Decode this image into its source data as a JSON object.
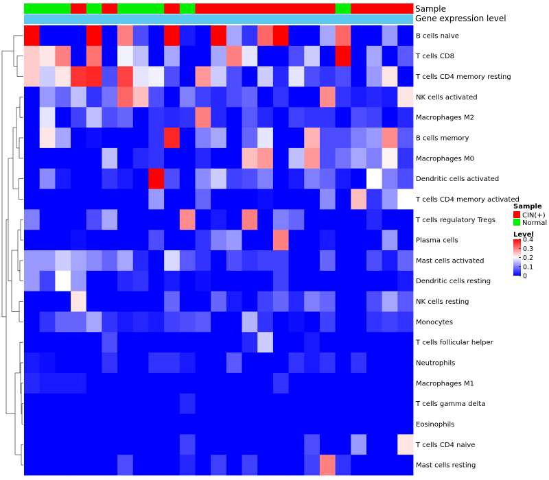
{
  "chart_data": {
    "type": "heatmap",
    "title": "",
    "annotations": {
      "sample_label": "Sample",
      "expression_label": "Gene expression level",
      "sample_groups": [
        "Normal",
        "Normal",
        "Normal",
        "CIN(+)",
        "Normal",
        "CIN(+)",
        "Normal",
        "Normal",
        "Normal",
        "CIN(+)",
        "Normal",
        "CIN(+)",
        "CIN(+)",
        "CIN(+)",
        "CIN(+)",
        "CIN(+)",
        "CIN(+)",
        "CIN(+)",
        "CIN(+)",
        "CIN(+)",
        "Normal",
        "CIN(+)",
        "CIN(+)",
        "CIN(+)",
        "CIN(+)"
      ],
      "sample_colors": {
        "CIN(+)": "#ff0000",
        "Normal": "#00ee00"
      },
      "expression_color": "#5bc8f0"
    },
    "rows": [
      "B cells naive",
      "T cells CD8",
      "T cells CD4 memory resting",
      "NK cells activated",
      "Macrophages M2",
      "B cells memory",
      "Macrophages M0",
      "Dendritic cells activated",
      "T cells CD4 memory activated",
      "T cells regulatory  Tregs",
      "Plasma cells",
      "Mast cells activated",
      "Dendritic cells resting",
      "NK cells resting",
      "Monocytes",
      "T cells follicular helper",
      "Neutrophils",
      "Macrophages M1",
      "T cells gamma delta",
      "Eosinophils",
      "T cells CD4 naive",
      "Mast cells resting"
    ],
    "values": [
      [
        0.4,
        0.0,
        0.0,
        0.0,
        0.4,
        0.0,
        0.3,
        0.06,
        0.0,
        0.4,
        0.02,
        0.0,
        0.4,
        0.13,
        0.04,
        0.32,
        0.4,
        0.0,
        0.0,
        0.13,
        0.32,
        0.0,
        0.0,
        0.12,
        0.0
      ],
      [
        0.24,
        0.22,
        0.3,
        0.0,
        0.31,
        0.0,
        0.19,
        0.15,
        0.0,
        0.13,
        0.0,
        0.0,
        0.13,
        0.3,
        0.18,
        0.0,
        0.0,
        0.06,
        0.16,
        0.0,
        0.4,
        0.0,
        0.13,
        0.0,
        0.07
      ],
      [
        0.24,
        0.16,
        0.22,
        0.36,
        0.37,
        0.06,
        0.35,
        0.18,
        0.19,
        0.06,
        0.0,
        0.28,
        0.16,
        0.06,
        0.0,
        0.16,
        0.03,
        0.18,
        0.06,
        0.04,
        0.06,
        0.0,
        0.12,
        0.22,
        0.0
      ],
      [
        0.0,
        0.12,
        0.08,
        0.15,
        0.04,
        0.09,
        0.32,
        0.25,
        0.06,
        0.0,
        0.1,
        0.05,
        0.03,
        0.06,
        0.08,
        0.0,
        0.04,
        0.0,
        0.0,
        0.29,
        0.04,
        0.02,
        0.03,
        0.02,
        0.22
      ],
      [
        0.0,
        0.18,
        0.0,
        0.05,
        0.15,
        0.06,
        0.08,
        0.0,
        0.04,
        0.03,
        0.04,
        0.3,
        0.03,
        0.0,
        0.07,
        0.03,
        0.0,
        0.05,
        0.04,
        0.04,
        0.0,
        0.06,
        0.05,
        0.0,
        0.03
      ],
      [
        0.0,
        0.22,
        0.13,
        0.0,
        0.01,
        0.0,
        0.0,
        0.0,
        0.04,
        0.37,
        0.0,
        0.1,
        0.13,
        0.0,
        0.08,
        0.18,
        0.0,
        0.0,
        0.26,
        0.06,
        0.06,
        0.1,
        0.12,
        0.29,
        0.07
      ],
      [
        0.0,
        0.0,
        0.0,
        0.0,
        0.0,
        0.15,
        0.0,
        0.03,
        0.04,
        0.0,
        0.0,
        0.03,
        0.0,
        0.0,
        0.25,
        0.28,
        0.0,
        0.15,
        0.28,
        0.06,
        0.09,
        0.13,
        0.1,
        0.21,
        0.04
      ],
      [
        0.0,
        0.11,
        0.02,
        0.0,
        0.0,
        0.04,
        0.02,
        0.0,
        0.4,
        0.06,
        0.0,
        0.11,
        0.16,
        0.05,
        0.06,
        0.1,
        0.0,
        0.02,
        0.1,
        0.08,
        0.02,
        0.0,
        0.2,
        0.1,
        0.06
      ],
      [
        0.0,
        0.0,
        0.0,
        0.0,
        0.0,
        0.0,
        0.0,
        0.0,
        0.12,
        0.0,
        0.0,
        0.08,
        0.0,
        0.0,
        0.0,
        0.01,
        0.0,
        0.0,
        0.0,
        0.11,
        0.0,
        0.25,
        0.04,
        0.12,
        0.2
      ],
      [
        0.1,
        0.0,
        0.0,
        0.0,
        0.06,
        0.13,
        0.0,
        0.0,
        0.0,
        0.0,
        0.29,
        0.0,
        0.02,
        0.0,
        0.3,
        0.0,
        0.1,
        0.08,
        0.0,
        0.0,
        0.0,
        0.0,
        0.03,
        0.0,
        0.0
      ],
      [
        0.0,
        0.0,
        0.0,
        0.01,
        0.0,
        0.0,
        0.0,
        0.0,
        0.06,
        0.0,
        0.0,
        0.04,
        0.1,
        0.12,
        0.0,
        0.0,
        0.3,
        0.0,
        0.0,
        0.02,
        0.0,
        0.0,
        0.0,
        0.12,
        0.0
      ],
      [
        0.12,
        0.12,
        0.16,
        0.13,
        0.11,
        0.08,
        0.13,
        0.03,
        0.0,
        0.17,
        0.07,
        0.04,
        0.0,
        0.06,
        0.04,
        0.05,
        0.05,
        0.0,
        0.0,
        0.08,
        0.0,
        0.0,
        0.06,
        0.02,
        0.08
      ],
      [
        0.12,
        0.05,
        0.2,
        0.12,
        0.0,
        0.0,
        0.03,
        0.04,
        0.0,
        0.02,
        0.0,
        0.01,
        0.0,
        0.0,
        0.0,
        0.0,
        0.05,
        0.0,
        0.0,
        0.0,
        0.0,
        0.0,
        0.0,
        0.0,
        0.02
      ],
      [
        0.0,
        0.0,
        0.0,
        0.22,
        0.0,
        0.0,
        0.0,
        0.0,
        0.0,
        0.08,
        0.0,
        0.0,
        0.08,
        0.02,
        0.0,
        0.05,
        0.08,
        0.03,
        0.1,
        0.08,
        0.0,
        0.0,
        0.06,
        0.13,
        0.07
      ],
      [
        0.0,
        0.04,
        0.08,
        0.08,
        0.13,
        0.04,
        0.02,
        0.03,
        0.02,
        0.05,
        0.06,
        0.07,
        0.0,
        0.0,
        0.14,
        0.04,
        0.0,
        0.01,
        0.0,
        0.05,
        0.0,
        0.0,
        0.04,
        0.05,
        0.04
      ],
      [
        0.0,
        0.0,
        0.0,
        0.0,
        0.0,
        0.06,
        0.0,
        0.0,
        0.0,
        0.0,
        0.0,
        0.0,
        0.0,
        0.0,
        0.03,
        0.16,
        0.0,
        0.0,
        0.02,
        0.0,
        0.0,
        0.0,
        0.0,
        0.0,
        0.0
      ],
      [
        0.02,
        0.01,
        0.0,
        0.0,
        0.0,
        0.04,
        0.0,
        0.0,
        0.04,
        0.04,
        0.02,
        0.0,
        0.0,
        0.07,
        0.0,
        0.0,
        0.0,
        0.04,
        0.02,
        0.04,
        0.0,
        0.04,
        0.0,
        0.0,
        0.0
      ],
      [
        0.03,
        0.02,
        0.02,
        0.02,
        0.0,
        0.0,
        0.0,
        0.0,
        0.0,
        0.0,
        0.0,
        0.0,
        0.0,
        0.0,
        0.0,
        0.0,
        0.04,
        0.0,
        0.0,
        0.0,
        0.0,
        0.0,
        0.0,
        0.0,
        0.0
      ],
      [
        0.0,
        0.0,
        0.0,
        0.0,
        0.0,
        0.0,
        0.0,
        0.0,
        0.0,
        0.0,
        0.03,
        0.0,
        0.0,
        0.0,
        0.0,
        0.0,
        0.0,
        0.0,
        0.0,
        0.0,
        0.0,
        0.0,
        0.0,
        0.0,
        0.0
      ],
      [
        0.0,
        0.0,
        0.0,
        0.0,
        0.0,
        0.0,
        0.0,
        0.0,
        0.0,
        0.0,
        0.0,
        0.0,
        0.0,
        0.0,
        0.0,
        0.0,
        0.0,
        0.0,
        0.0,
        0.0,
        0.0,
        0.0,
        0.0,
        0.0,
        0.0
      ],
      [
        0.0,
        0.0,
        0.0,
        0.0,
        0.0,
        0.0,
        0.0,
        0.0,
        0.0,
        0.0,
        0.05,
        0.0,
        0.0,
        0.0,
        0.0,
        0.0,
        0.0,
        0.0,
        0.06,
        0.0,
        0.0,
        0.12,
        0.0,
        0.0,
        0.22
      ],
      [
        0.0,
        0.0,
        0.0,
        0.0,
        0.0,
        0.0,
        0.06,
        0.0,
        0.0,
        0.0,
        0.03,
        0.0,
        0.05,
        0.0,
        0.05,
        0.0,
        0.0,
        0.0,
        0.05,
        0.3,
        0.04,
        0.0,
        0.0,
        0.0,
        0.0
      ]
    ],
    "color_scale": {
      "min": 0,
      "mid": 0.2,
      "max": 0.4,
      "low_color": "#0000ff",
      "mid_color": "#ffffff",
      "high_color": "#ff0000"
    },
    "legend": {
      "sample_title": "Sample",
      "sample_entries": [
        "CIN(+)",
        "Normal"
      ],
      "level_title": "Level",
      "level_ticks": [
        "0.4",
        "0.3",
        "0.2",
        "0.1",
        "0"
      ],
      "level_tick_values": [
        0.4,
        0.3,
        0.2,
        0.1,
        0
      ]
    },
    "dendrogram": "rows (left side)"
  }
}
